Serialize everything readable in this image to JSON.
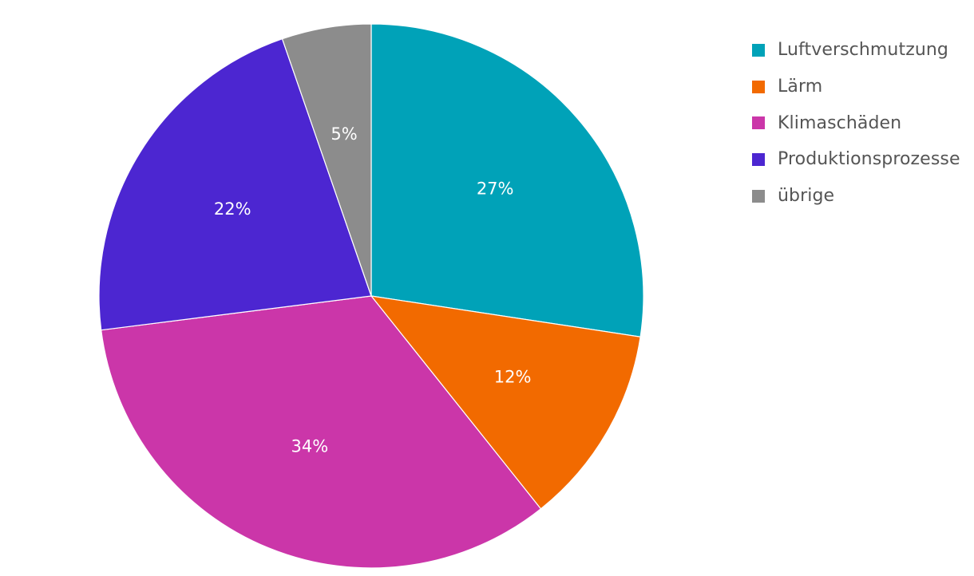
{
  "chart_data": {
    "type": "pie",
    "categories": [
      "Luftverschmutzung",
      "Lärm",
      "Klimaschäden",
      "Produktionsprozesse",
      "übrige"
    ],
    "values": [
      27.4,
      11.9,
      33.7,
      21.7,
      5.3
    ],
    "data_labels": [
      "27%",
      "12%",
      "34%",
      "22%",
      "5%"
    ],
    "colors": [
      "#00a2b8",
      "#f26a00",
      "#cb36a9",
      "#4c26d1",
      "#8c8c8c"
    ],
    "start_angle": "top",
    "direction": "clockwise",
    "legend_position": "top-right"
  }
}
